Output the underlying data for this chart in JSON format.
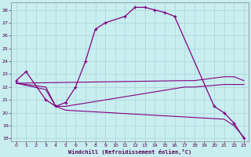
{
  "xlabel": "Windchill (Refroidissement éolien,°C)",
  "background_color": "#c8eef0",
  "line_color": "#800080",
  "grid_color": "#b0d8dc",
  "xlim": [
    -0.5,
    23.5
  ],
  "ylim": [
    17.8,
    28.6
  ],
  "yticks": [
    18,
    19,
    20,
    21,
    22,
    23,
    24,
    25,
    26,
    27,
    28
  ],
  "xticks": [
    0,
    1,
    2,
    3,
    4,
    5,
    6,
    7,
    8,
    9,
    10,
    11,
    12,
    13,
    14,
    15,
    16,
    17,
    18,
    19,
    20,
    21,
    22,
    23
  ],
  "curve1_x": [
    0,
    1,
    3,
    4,
    5,
    6,
    7,
    8,
    9,
    11,
    12,
    13,
    14,
    15,
    16,
    20,
    21,
    22,
    23
  ],
  "curve1_y": [
    22.5,
    23.2,
    21.0,
    20.5,
    20.8,
    22.0,
    24.0,
    26.5,
    27.0,
    27.5,
    28.2,
    28.2,
    28.0,
    27.8,
    27.5,
    20.5,
    20.0,
    19.2,
    18.0
  ],
  "line1_x": [
    0,
    3,
    4,
    5,
    17,
    18,
    21,
    23
  ],
  "line1_y": [
    22.3,
    22.0,
    20.5,
    20.5,
    22.0,
    22.0,
    22.2,
    22.2
  ],
  "line2_x": [
    0,
    17,
    18,
    21,
    22,
    23
  ],
  "line2_y": [
    22.3,
    22.5,
    22.5,
    22.8,
    22.8,
    22.5
  ],
  "line3_x": [
    0,
    3,
    4,
    5,
    21,
    22,
    23
  ],
  "line3_y": [
    22.3,
    21.8,
    20.5,
    20.2,
    19.5,
    19.0,
    18.1
  ]
}
